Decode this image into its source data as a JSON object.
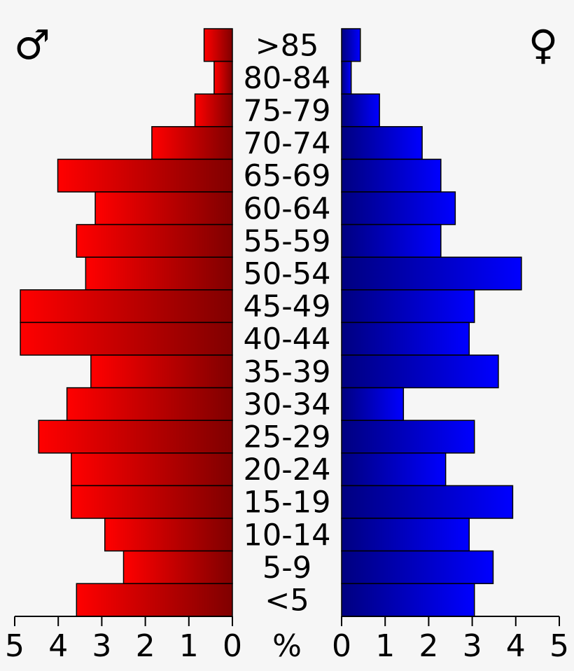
{
  "chart_data": {
    "type": "bar",
    "layout": "population-pyramid",
    "categories": [
      ">85",
      "80-84",
      "75-79",
      "70-74",
      "65-69",
      "60-64",
      "55-59",
      "50-54",
      "45-49",
      "40-44",
      "35-39",
      "30-34",
      "25-29",
      "20-24",
      "15-19",
      "10-14",
      "5-9",
      "<5"
    ],
    "series": [
      {
        "symbol": "♂",
        "color": "#ff0000",
        "color_dark": "#800000",
        "values": [
          0.65,
          0.42,
          0.86,
          1.85,
          4.01,
          3.15,
          3.58,
          3.37,
          4.87,
          4.87,
          3.25,
          3.8,
          4.45,
          3.7,
          3.7,
          2.93,
          2.5,
          3.58
        ]
      },
      {
        "symbol": "♀",
        "color": "#0000ff",
        "color_dark": "#000080",
        "values": [
          0.43,
          0.22,
          0.87,
          1.85,
          2.28,
          2.61,
          2.28,
          4.13,
          3.05,
          2.93,
          3.6,
          1.42,
          3.05,
          2.39,
          3.93,
          2.93,
          3.48,
          3.05
        ]
      }
    ],
    "unit_label": "%",
    "xlim": [
      0,
      5
    ],
    "ticks": [
      "0",
      "1",
      "2",
      "3",
      "4",
      "5"
    ]
  }
}
